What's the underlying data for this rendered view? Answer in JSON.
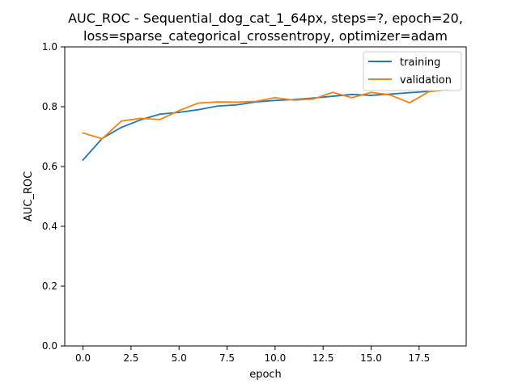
{
  "chart_data": {
    "type": "line",
    "title_line1": "AUC_ROC - Sequential_dog_cat_1_64px, steps=?, epoch=20,",
    "title_line2": "loss=sparse_categorical_crossentropy, optimizer=adam",
    "xlabel": "epoch",
    "ylabel": "AUC_ROC",
    "xlim": [
      -0.95,
      19.95
    ],
    "ylim": [
      0.0,
      1.0
    ],
    "x_ticks": [
      0.0,
      2.5,
      5.0,
      7.5,
      10.0,
      12.5,
      15.0,
      17.5
    ],
    "x_tick_labels": [
      "0.0",
      "2.5",
      "5.0",
      "7.5",
      "10.0",
      "12.5",
      "15.0",
      "17.5"
    ],
    "y_ticks": [
      0.0,
      0.2,
      0.4,
      0.6,
      0.8,
      1.0
    ],
    "y_tick_labels": [
      "0.0",
      "0.2",
      "0.4",
      "0.6",
      "0.8",
      "1.0"
    ],
    "grid": false,
    "legend_position": "top-right",
    "x": [
      0,
      1,
      2,
      3,
      4,
      5,
      6,
      7,
      8,
      9,
      10,
      11,
      12,
      13,
      14,
      15,
      16,
      17,
      18,
      19
    ],
    "series": [
      {
        "name": "training",
        "color": "#1f77b4",
        "values": [
          0.622,
          0.694,
          0.731,
          0.756,
          0.775,
          0.781,
          0.79,
          0.802,
          0.806,
          0.816,
          0.821,
          0.824,
          0.829,
          0.835,
          0.841,
          0.838,
          0.842,
          0.847,
          0.851,
          0.857
        ]
      },
      {
        "name": "validation",
        "color": "#ff7f0e",
        "values": [
          0.712,
          0.693,
          0.752,
          0.761,
          0.757,
          0.787,
          0.812,
          0.816,
          0.815,
          0.818,
          0.83,
          0.822,
          0.826,
          0.848,
          0.83,
          0.848,
          0.839,
          0.813,
          0.85,
          0.857
        ]
      }
    ]
  }
}
